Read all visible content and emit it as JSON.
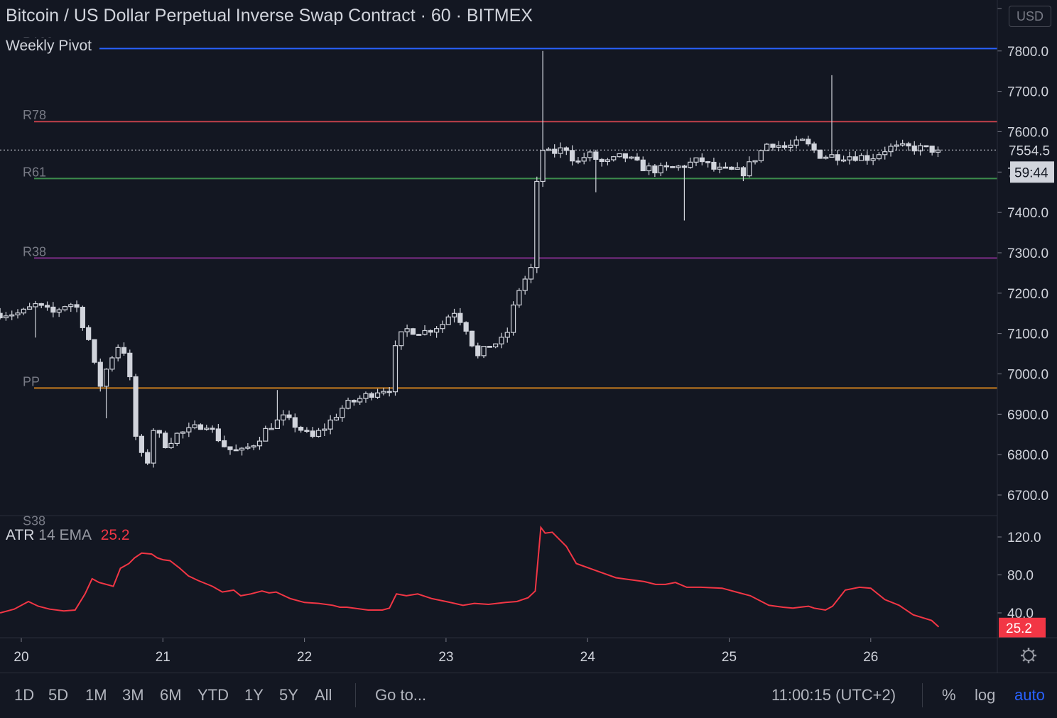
{
  "header": {
    "title": "Bitcoin / US Dollar Perpetual Inverse Swap Contract · 60 · BITMEX",
    "currency": "USD",
    "pivot_indicator": "Weekly Pivot"
  },
  "colors": {
    "background": "#131722",
    "candle": "#d1d4dc",
    "R100": "#2962ff",
    "R78": "#c2404b",
    "R61": "#3c8c4c",
    "R38": "#7b2d86",
    "PP": "#c77c1e",
    "atr": "#f23645"
  },
  "chart_data": [
    {
      "type": "candlestick",
      "ylim": [
        6620,
        7880
      ],
      "y_ticks": [
        "6700.0",
        "6800.0",
        "6900.0",
        "7000.0",
        "7100.0",
        "7200.0",
        "7300.0",
        "7400.0",
        "7500.0",
        "7600.0",
        "7700.0",
        "7800.0"
      ],
      "x_ticks": [
        "20",
        "21",
        "22",
        "23",
        "24",
        "25",
        "26"
      ],
      "last_price": "7554.5",
      "countdown": "59:44",
      "pivot_levels": [
        {
          "name": "R100",
          "value": 7806
        },
        {
          "name": "R78",
          "value": 7625
        },
        {
          "name": "R61",
          "value": 7484
        },
        {
          "name": "R38",
          "value": 7287
        },
        {
          "name": "PP",
          "value": 6965
        },
        {
          "name": "S38",
          "value": 6620
        }
      ],
      "anchors": [
        [
          20.0,
          7150
        ],
        [
          20.1,
          7170
        ],
        [
          20.22,
          7150
        ],
        [
          20.3,
          7170
        ],
        [
          20.38,
          7175
        ],
        [
          20.48,
          7080
        ],
        [
          20.55,
          6965
        ],
        [
          20.62,
          7030
        ],
        [
          20.68,
          7070
        ],
        [
          20.75,
          7050
        ],
        [
          20.8,
          6855
        ],
        [
          20.88,
          6760
        ],
        [
          20.93,
          6865
        ],
        [
          21.02,
          6825
        ],
        [
          21.1,
          6850
        ],
        [
          21.2,
          6860
        ],
        [
          21.3,
          6880
        ],
        [
          21.45,
          6815
        ],
        [
          21.55,
          6805
        ],
        [
          21.65,
          6830
        ],
        [
          21.75,
          6870
        ],
        [
          21.85,
          6890
        ],
        [
          21.95,
          6870
        ],
        [
          22.05,
          6840
        ],
        [
          22.15,
          6870
        ],
        [
          22.28,
          6920
        ],
        [
          22.4,
          6940
        ],
        [
          22.52,
          6960
        ],
        [
          22.6,
          6965
        ],
        [
          22.65,
          7080
        ],
        [
          22.72,
          7110
        ],
        [
          22.85,
          7105
        ],
        [
          22.98,
          7125
        ],
        [
          23.05,
          7160
        ],
        [
          23.15,
          7110
        ],
        [
          23.22,
          7040
        ],
        [
          23.3,
          7070
        ],
        [
          23.42,
          7085
        ],
        [
          23.5,
          7200
        ],
        [
          23.6,
          7260
        ],
        [
          23.66,
          7560
        ],
        [
          23.73,
          7545
        ],
        [
          23.85,
          7560
        ],
        [
          23.92,
          7520
        ],
        [
          24.0,
          7545
        ],
        [
          24.12,
          7520
        ],
        [
          24.25,
          7540
        ],
        [
          24.4,
          7510
        ],
        [
          24.5,
          7505
        ],
        [
          24.62,
          7510
        ],
        [
          24.8,
          7530
        ],
        [
          24.9,
          7505
        ],
        [
          25.1,
          7500
        ],
        [
          25.28,
          7575
        ],
        [
          25.4,
          7560
        ],
        [
          25.52,
          7575
        ],
        [
          25.65,
          7540
        ],
        [
          25.75,
          7540
        ],
        [
          25.88,
          7540
        ],
        [
          26.0,
          7535
        ],
        [
          26.12,
          7560
        ],
        [
          26.3,
          7560
        ],
        [
          26.48,
          7554.5
        ]
      ],
      "spikes": [
        {
          "x": 23.67,
          "high": 7800
        },
        {
          "x": 25.71,
          "high": 7740
        },
        {
          "x": 24.68,
          "low": 7380
        },
        {
          "x": 24.05,
          "low": 7450
        },
        {
          "x": 20.58,
          "low": 6890
        },
        {
          "x": 20.12,
          "low": 7090
        },
        {
          "x": 21.82,
          "high": 6960
        }
      ]
    },
    {
      "type": "line",
      "name": "ATR",
      "params": "14 EMA",
      "last_value": "25.2",
      "ylim": [
        20,
        140
      ],
      "y_ticks": [
        "40.0",
        "80.0",
        "120.0"
      ],
      "x": [
        19.85,
        19.95,
        20.05,
        20.12,
        20.2,
        20.3,
        20.38,
        20.45,
        20.5,
        20.55,
        20.6,
        20.65,
        20.7,
        20.76,
        20.8,
        20.85,
        20.92,
        20.96,
        21.0,
        21.05,
        21.12,
        21.18,
        21.25,
        21.35,
        21.42,
        21.5,
        21.55,
        21.62,
        21.7,
        21.75,
        21.8,
        21.9,
        22.0,
        22.1,
        22.2,
        22.25,
        22.3,
        22.45,
        22.55,
        22.6,
        22.65,
        22.72,
        22.8,
        22.9,
        23.0,
        23.06,
        23.12,
        23.2,
        23.3,
        23.42,
        23.5,
        23.58,
        23.63,
        23.67,
        23.7,
        23.75,
        23.85,
        23.92,
        24.05,
        24.2,
        24.3,
        24.4,
        24.48,
        24.55,
        24.62,
        24.7,
        24.8,
        24.95,
        25.05,
        25.15,
        25.28,
        25.38,
        25.45,
        25.5,
        25.56,
        25.6,
        25.68,
        25.73,
        25.82,
        25.92,
        26.0,
        26.1,
        26.2,
        26.3,
        26.43,
        26.48
      ],
      "y": [
        40,
        44,
        52,
        47,
        44,
        42,
        43,
        60,
        76,
        72,
        70,
        68,
        87,
        92,
        98,
        103,
        102,
        98,
        96,
        95,
        87,
        79,
        74,
        68,
        62,
        64,
        58,
        60,
        63,
        61,
        62,
        55,
        51,
        50,
        48,
        46,
        46,
        43,
        43,
        45,
        60,
        58,
        60,
        55,
        52,
        50,
        48,
        50,
        49,
        51,
        52,
        56,
        63,
        130,
        124,
        125,
        110,
        92,
        85,
        77,
        75,
        73,
        70,
        70,
        72,
        67,
        67,
        66,
        62,
        58,
        48,
        46,
        45,
        46,
        47,
        45,
        43,
        47,
        64,
        67,
        66,
        54,
        48,
        38,
        32,
        25.2
      ]
    }
  ],
  "toolbar": {
    "timeframes": [
      "1D",
      "5D",
      "1M",
      "3M",
      "6M",
      "YTD",
      "1Y",
      "5Y",
      "All"
    ],
    "goto": "Go to...",
    "clock": "11:00:15 (UTC+2)",
    "percent": "%",
    "log": "log",
    "auto": "auto"
  }
}
